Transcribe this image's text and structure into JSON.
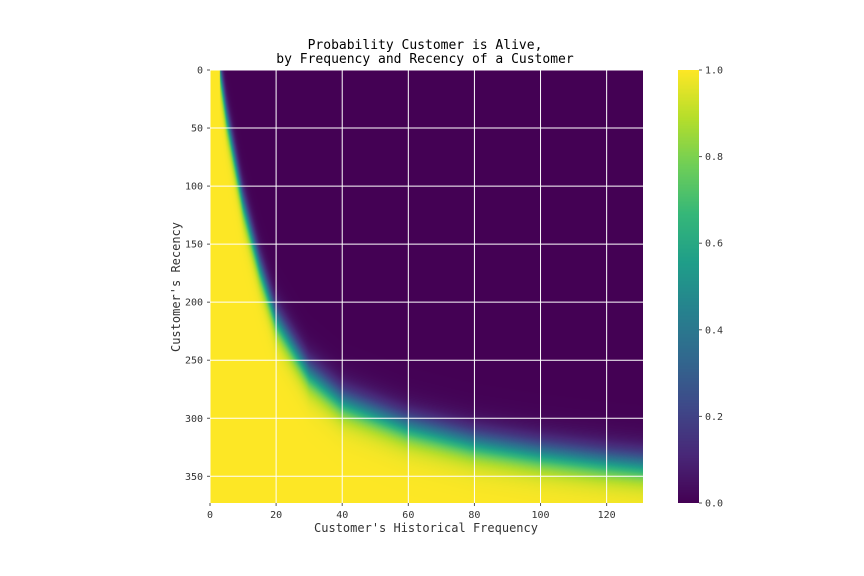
{
  "chart_data": {
    "type": "heatmap",
    "title_lines": [
      "Probability Customer is Alive,",
      "by Frequency and Recency of a Customer"
    ],
    "xlabel": "Customer's Historical Frequency",
    "ylabel": "Customer's Recency",
    "xlim": [
      0,
      131
    ],
    "ylim": [
      0,
      373
    ],
    "y_inverted": true,
    "xticks": [
      0,
      20,
      40,
      60,
      80,
      100,
      120
    ],
    "yticks": [
      0,
      50,
      100,
      150,
      200,
      250,
      300,
      350
    ],
    "grid": true,
    "colormap": "viridis",
    "colorbar": {
      "range": [
        0.0,
        1.0
      ],
      "ticks": [
        0.0,
        0.2,
        0.4,
        0.6,
        0.8,
        1.0
      ],
      "tick_labels": [
        "0.0",
        "0.2",
        "0.4",
        "0.6",
        "0.8",
        "1.0"
      ]
    },
    "boundary_p50": {
      "description": "approximate recency at which P(alive)=0.5 for each frequency",
      "frequency": [
        3,
        5,
        10,
        15,
        20,
        30,
        40,
        60,
        80,
        100,
        120,
        131
      ],
      "recency": [
        0,
        40,
        115,
        170,
        215,
        262,
        286,
        308,
        322,
        331,
        338,
        341
      ]
    },
    "transition_width_recency": 8
  },
  "colors": {
    "background": "#ffffff",
    "grid": "#ffffff",
    "text": "#000000",
    "tick_text": "#333333",
    "viridis_stops": [
      "#440154",
      "#482878",
      "#3e4989",
      "#31688e",
      "#26828e",
      "#1f9e89",
      "#35b779",
      "#6ece58",
      "#b5de2b",
      "#fde725"
    ]
  }
}
